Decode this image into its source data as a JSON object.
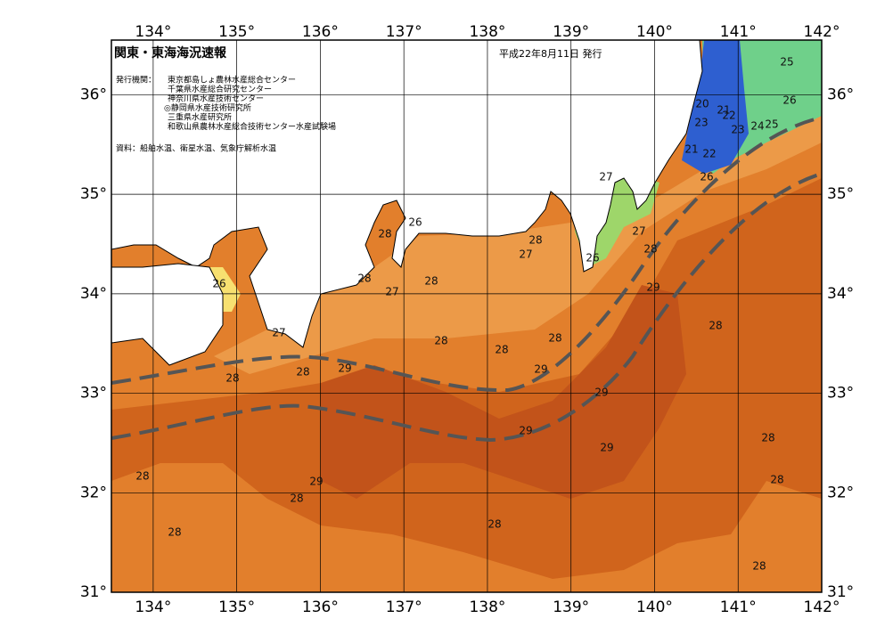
{
  "header": {
    "title": "関東・東海海況速報",
    "date": "平成22年8月11日 発行",
    "publisher_label": "発行機関：",
    "publishers": [
      "東京都島しょ農林水産総合センター",
      "千葉県水産総合研究センター",
      "神奈川県水産技術センター",
      "◎静岡県水産技術研究所",
      "三重県水産研究所",
      "和歌山県農林水産総合技術センター水産試験場"
    ],
    "sources": "資料：船舶水温、衛星水温、気象庁解析水温"
  },
  "map": {
    "lon_range": [
      133.5,
      142
    ],
    "lat_range": [
      31,
      36.55
    ],
    "lon_ticks": [
      {
        "value": 134,
        "label": "134°"
      },
      {
        "value": 135,
        "label": "135°"
      },
      {
        "value": 136,
        "label": "136°"
      },
      {
        "value": 137,
        "label": "137°"
      },
      {
        "value": 138,
        "label": "138°"
      },
      {
        "value": 139,
        "label": "139°"
      },
      {
        "value": 140,
        "label": "140°"
      },
      {
        "value": 141,
        "label": "141°"
      },
      {
        "value": 142,
        "label": "142°"
      }
    ],
    "lat_ticks": [
      {
        "value": 31,
        "label": "31°"
      },
      {
        "value": 32,
        "label": "32°"
      },
      {
        "value": 33,
        "label": "33°"
      },
      {
        "value": 34,
        "label": "34°"
      },
      {
        "value": 35,
        "label": "35°"
      },
      {
        "value": 36,
        "label": "36°"
      }
    ],
    "contour_labels": [
      "25",
      "26",
      "20",
      "21",
      "22",
      "23",
      "23",
      "24",
      "25",
      "21",
      "22",
      "26",
      "27",
      "26",
      "28",
      "28",
      "27",
      "26",
      "27",
      "28",
      "26",
      "28",
      "27",
      "28",
      "29",
      "28",
      "27",
      "28",
      "28",
      "28",
      "29",
      "28",
      "29",
      "28",
      "29",
      "29",
      "29",
      "28",
      "28",
      "29",
      "28",
      "28",
      "28",
      "28",
      "28"
    ]
  }
}
